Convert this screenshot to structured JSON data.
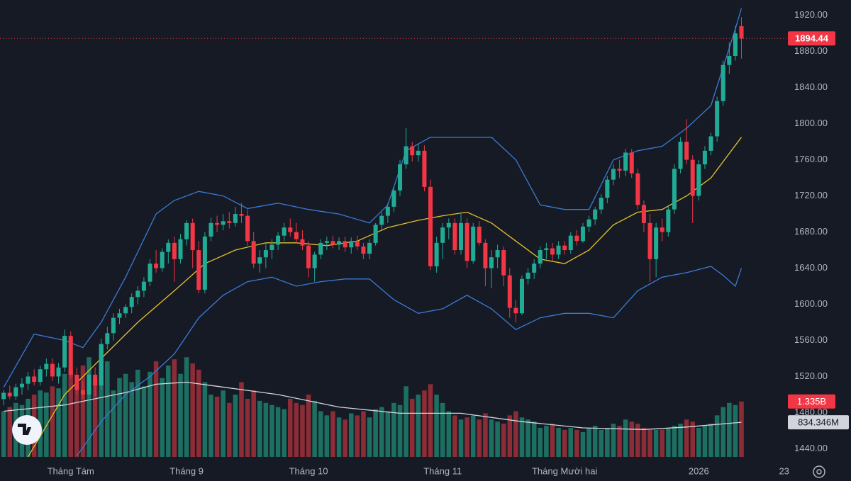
{
  "chart_data": {
    "type": "candlestick",
    "up_color": "#22ab94",
    "down_color": "#f23645",
    "ylim": [
      1427,
      1937
    ],
    "yticks": [
      {
        "value": 1440,
        "label": "1440.00"
      },
      {
        "value": 1480,
        "label": "1480.00"
      },
      {
        "value": 1520,
        "label": "1520.00"
      },
      {
        "value": 1560,
        "label": "1560.00"
      },
      {
        "value": 1600,
        "label": "1600.00"
      },
      {
        "value": 1640,
        "label": "1640.00"
      },
      {
        "value": 1680,
        "label": "1680.00"
      },
      {
        "value": 1720,
        "label": "1720.00"
      },
      {
        "value": 1760,
        "label": "1760.00"
      },
      {
        "value": 1800,
        "label": "1800.00"
      },
      {
        "value": 1840,
        "label": "1840.00"
      },
      {
        "value": 1880,
        "label": "1880.00"
      },
      {
        "value": 1920,
        "label": "1920.00"
      }
    ],
    "xlim": [
      -0.6,
      128.5
    ],
    "xticks": [
      {
        "value": 11,
        "label": "Tháng Tám"
      },
      {
        "value": 30,
        "label": "Tháng 9"
      },
      {
        "value": 50,
        "label": "Tháng 10"
      },
      {
        "value": 72,
        "label": "Tháng 11"
      },
      {
        "value": 92,
        "label": "Tháng Mười hai"
      },
      {
        "value": 114,
        "label": "2026"
      },
      {
        "value": 128,
        "label": "23"
      }
    ],
    "grid": false,
    "candles": [
      [
        1495,
        1505,
        1488,
        1502
      ],
      [
        1502,
        1510,
        1495,
        1498
      ],
      [
        1498,
        1512,
        1494,
        1508
      ],
      [
        1508,
        1518,
        1500,
        1512
      ],
      [
        1512,
        1525,
        1505,
        1520
      ],
      [
        1520,
        1528,
        1510,
        1514
      ],
      [
        1514,
        1532,
        1510,
        1528
      ],
      [
        1528,
        1540,
        1520,
        1534
      ],
      [
        1534,
        1540,
        1515,
        1520
      ],
      [
        1520,
        1535,
        1512,
        1530
      ],
      [
        1530,
        1572,
        1525,
        1565
      ],
      [
        1565,
        1570,
        1518,
        1522
      ],
      [
        1522,
        1530,
        1500,
        1505
      ],
      [
        1505,
        1515,
        1495,
        1500
      ],
      [
        1500,
        1525,
        1496,
        1522
      ],
      [
        1522,
        1530,
        1498,
        1510
      ],
      [
        1510,
        1562,
        1505,
        1556
      ],
      [
        1556,
        1575,
        1550,
        1568
      ],
      [
        1568,
        1590,
        1560,
        1585
      ],
      [
        1585,
        1595,
        1578,
        1590
      ],
      [
        1590,
        1600,
        1585,
        1597
      ],
      [
        1597,
        1612,
        1590,
        1608
      ],
      [
        1608,
        1620,
        1600,
        1615
      ],
      [
        1615,
        1630,
        1608,
        1625
      ],
      [
        1625,
        1650,
        1620,
        1645
      ],
      [
        1645,
        1660,
        1635,
        1640
      ],
      [
        1640,
        1662,
        1636,
        1658
      ],
      [
        1658,
        1672,
        1645,
        1668
      ],
      [
        1668,
        1675,
        1625,
        1650
      ],
      [
        1650,
        1678,
        1645,
        1672
      ],
      [
        1672,
        1693,
        1665,
        1690
      ],
      [
        1690,
        1695,
        1640,
        1660
      ],
      [
        1660,
        1670,
        1612,
        1616
      ],
      [
        1616,
        1680,
        1612,
        1675
      ],
      [
        1675,
        1696,
        1670,
        1690
      ],
      [
        1690,
        1698,
        1680,
        1688
      ],
      [
        1688,
        1700,
        1682,
        1692
      ],
      [
        1692,
        1702,
        1684,
        1690
      ],
      [
        1690,
        1708,
        1686,
        1700
      ],
      [
        1700,
        1712,
        1690,
        1698
      ],
      [
        1698,
        1705,
        1665,
        1670
      ],
      [
        1670,
        1680,
        1640,
        1645
      ],
      [
        1645,
        1660,
        1635,
        1652
      ],
      [
        1652,
        1668,
        1640,
        1660
      ],
      [
        1660,
        1672,
        1650,
        1666
      ],
      [
        1666,
        1680,
        1660,
        1676
      ],
      [
        1676,
        1690,
        1670,
        1685
      ],
      [
        1685,
        1695,
        1675,
        1680
      ],
      [
        1680,
        1690,
        1668,
        1672
      ],
      [
        1672,
        1682,
        1660,
        1665
      ],
      [
        1665,
        1670,
        1630,
        1640
      ],
      [
        1640,
        1658,
        1625,
        1655
      ],
      [
        1655,
        1672,
        1650,
        1668
      ],
      [
        1668,
        1675,
        1660,
        1670
      ],
      [
        1670,
        1676,
        1662,
        1666
      ],
      [
        1666,
        1674,
        1660,
        1670
      ],
      [
        1670,
        1675,
        1658,
        1663
      ],
      [
        1663,
        1674,
        1656,
        1670
      ],
      [
        1670,
        1676,
        1660,
        1664
      ],
      [
        1664,
        1668,
        1650,
        1656
      ],
      [
        1656,
        1672,
        1650,
        1668
      ],
      [
        1668,
        1690,
        1665,
        1688
      ],
      [
        1688,
        1702,
        1682,
        1698
      ],
      [
        1698,
        1712,
        1690,
        1708
      ],
      [
        1708,
        1730,
        1702,
        1726
      ],
      [
        1726,
        1760,
        1720,
        1755
      ],
      [
        1755,
        1795,
        1750,
        1775
      ],
      [
        1775,
        1780,
        1758,
        1765
      ],
      [
        1765,
        1778,
        1758,
        1770
      ],
      [
        1770,
        1776,
        1725,
        1730
      ],
      [
        1730,
        1738,
        1638,
        1642
      ],
      [
        1642,
        1675,
        1635,
        1668
      ],
      [
        1668,
        1690,
        1650,
        1685
      ],
      [
        1685,
        1695,
        1672,
        1690
      ],
      [
        1690,
        1695,
        1655,
        1660
      ],
      [
        1660,
        1700,
        1655,
        1690
      ],
      [
        1690,
        1695,
        1640,
        1648
      ],
      [
        1648,
        1690,
        1645,
        1686
      ],
      [
        1686,
        1692,
        1665,
        1668
      ],
      [
        1668,
        1672,
        1620,
        1640
      ],
      [
        1640,
        1660,
        1618,
        1652
      ],
      [
        1652,
        1666,
        1640,
        1660
      ],
      [
        1660,
        1664,
        1620,
        1632
      ],
      [
        1632,
        1640,
        1585,
        1596
      ],
      [
        1596,
        1605,
        1580,
        1590
      ],
      [
        1590,
        1632,
        1588,
        1628
      ],
      [
        1628,
        1640,
        1622,
        1635
      ],
      [
        1635,
        1650,
        1628,
        1645
      ],
      [
        1645,
        1664,
        1640,
        1660
      ],
      [
        1660,
        1668,
        1650,
        1662
      ],
      [
        1662,
        1668,
        1648,
        1655
      ],
      [
        1655,
        1670,
        1650,
        1665
      ],
      [
        1665,
        1670,
        1655,
        1660
      ],
      [
        1660,
        1680,
        1656,
        1676
      ],
      [
        1676,
        1682,
        1665,
        1670
      ],
      [
        1670,
        1690,
        1668,
        1686
      ],
      [
        1686,
        1698,
        1680,
        1694
      ],
      [
        1694,
        1708,
        1688,
        1705
      ],
      [
        1705,
        1722,
        1700,
        1718
      ],
      [
        1718,
        1742,
        1712,
        1738
      ],
      [
        1738,
        1755,
        1732,
        1750
      ],
      [
        1750,
        1760,
        1740,
        1748
      ],
      [
        1748,
        1772,
        1742,
        1768
      ],
      [
        1768,
        1772,
        1740,
        1745
      ],
      [
        1745,
        1750,
        1705,
        1710
      ],
      [
        1710,
        1715,
        1680,
        1690
      ],
      [
        1690,
        1700,
        1625,
        1650
      ],
      [
        1650,
        1690,
        1630,
        1685
      ],
      [
        1685,
        1695,
        1670,
        1680
      ],
      [
        1680,
        1710,
        1675,
        1705
      ],
      [
        1705,
        1755,
        1700,
        1750
      ],
      [
        1750,
        1785,
        1745,
        1780
      ],
      [
        1780,
        1805,
        1755,
        1760
      ],
      [
        1760,
        1765,
        1690,
        1720
      ],
      [
        1720,
        1760,
        1715,
        1755
      ],
      [
        1755,
        1775,
        1750,
        1770
      ],
      [
        1770,
        1790,
        1765,
        1786
      ],
      [
        1786,
        1830,
        1780,
        1825
      ],
      [
        1825,
        1870,
        1820,
        1865
      ],
      [
        1865,
        1890,
        1855,
        1875
      ],
      [
        1875,
        1908,
        1870,
        1900
      ],
      [
        1908,
        1918,
        1872,
        1894.44
      ]
    ],
    "last_price_color": "#f23645",
    "upper_band": {
      "color": "#3a7bd5",
      "x": [
        0,
        5,
        10,
        13,
        16,
        20,
        25,
        28,
        32,
        36,
        40,
        45,
        50,
        55,
        60,
        63,
        66,
        70,
        75,
        80,
        84,
        88,
        92,
        96,
        100,
        104,
        108,
        112,
        116,
        120,
        121
      ],
      "values": [
        1508,
        1567,
        1560,
        1552,
        1580,
        1630,
        1700,
        1715,
        1725,
        1720,
        1706,
        1712,
        1705,
        1700,
        1690,
        1710,
        1770,
        1785,
        1785,
        1785,
        1760,
        1710,
        1705,
        1705,
        1760,
        1770,
        1775,
        1795,
        1820,
        1905,
        1928
      ]
    },
    "middle_band": {
      "color": "#e5c12b",
      "x": [
        4,
        10,
        16,
        22,
        28,
        33,
        38,
        43,
        48,
        53,
        58,
        63,
        68,
        72,
        76,
        80,
        84,
        88,
        92,
        96,
        100,
        104,
        108,
        112,
        116,
        121
      ],
      "values": [
        1431,
        1500,
        1540,
        1580,
        1615,
        1645,
        1660,
        1668,
        1668,
        1665,
        1670,
        1685,
        1693,
        1698,
        1702,
        1690,
        1670,
        1650,
        1645,
        1660,
        1688,
        1702,
        1705,
        1720,
        1740,
        1785
      ]
    },
    "lower_band": {
      "color": "#3a7bd5",
      "x": [
        12,
        16,
        20,
        24,
        28,
        32,
        36,
        40,
        44,
        48,
        52,
        56,
        60,
        64,
        68,
        72,
        76,
        80,
        84,
        88,
        92,
        96,
        100,
        104,
        108,
        112,
        116,
        118,
        120,
        121
      ],
      "values": [
        1432,
        1470,
        1500,
        1520,
        1545,
        1585,
        1610,
        1625,
        1630,
        1620,
        1625,
        1628,
        1628,
        1605,
        1590,
        1595,
        1610,
        1595,
        1572,
        1585,
        1590,
        1590,
        1585,
        1615,
        1630,
        1635,
        1642,
        1632,
        1620,
        1640
      ]
    },
    "volume": {
      "up_color": "#1d6f62",
      "down_color": "#8b2c36",
      "vlim": [
        0,
        11000
      ],
      "values": [
        1100,
        1200,
        1300,
        1250,
        1400,
        1500,
        1600,
        1550,
        1700,
        1650,
        2000,
        2100,
        1700,
        2200,
        2400,
        1900,
        2700,
        2300,
        1600,
        1900,
        2000,
        1800,
        2100,
        1700,
        2050,
        2300,
        1900,
        2200,
        2350,
        2000,
        2400,
        2250,
        2100,
        1800,
        1500,
        1450,
        1600,
        1300,
        1500,
        1800,
        1400,
        1600,
        1350,
        1300,
        1250,
        1200,
        1150,
        1400,
        1300,
        1250,
        1500,
        1350,
        1100,
        1000,
        1100,
        950,
        900,
        1050,
        1000,
        1100,
        950,
        1150,
        1200,
        1100,
        1300,
        1250,
        1700,
        1400,
        1500,
        1600,
        1750,
        1500,
        1300,
        1100,
        1000,
        900,
        950,
        1000,
        900,
        1050,
        900,
        850,
        800,
        1000,
        1100,
        950,
        900,
        850,
        700,
        750,
        800,
        700,
        650,
        700,
        650,
        600,
        700,
        750,
        650,
        700,
        800,
        750,
        900,
        850,
        800,
        700,
        650,
        650,
        650,
        700,
        750,
        800,
        900,
        850,
        700,
        750,
        800,
        1000,
        1200,
        1300,
        1250,
        1335
      ],
      "value_labels": [
        null,
        null,
        null,
        null,
        null,
        null,
        null,
        null,
        null,
        null,
        null,
        null,
        null,
        null,
        null,
        null,
        null,
        null,
        null,
        null,
        null,
        null,
        null,
        null,
        null,
        null,
        null,
        null,
        null,
        null,
        null,
        null,
        null,
        null,
        null,
        null,
        null,
        null,
        null,
        null,
        null,
        null,
        null,
        null,
        null,
        null,
        null,
        null,
        null,
        null,
        null,
        null,
        null,
        null,
        null,
        null,
        null,
        null,
        null,
        null,
        null,
        null,
        null,
        null,
        null,
        null,
        null,
        null,
        null,
        null,
        null,
        null,
        null,
        null,
        null,
        null,
        null,
        null,
        null,
        null,
        null,
        null,
        null,
        null,
        null,
        null,
        null,
        null,
        null,
        null,
        null,
        null,
        null,
        null,
        null,
        null,
        null,
        null,
        null,
        null,
        null,
        null,
        null,
        null,
        null,
        null,
        null,
        null,
        null,
        null,
        null,
        null,
        null,
        null,
        null,
        null,
        null,
        null,
        null,
        null,
        null,
        "1.335B"
      ],
      "ma": {
        "color": "#d1d4dc",
        "x": [
          0,
          10,
          20,
          25,
          30,
          35,
          45,
          55,
          65,
          75,
          85,
          95,
          105,
          112,
          121
        ],
        "values": [
          1100,
          1250,
          1550,
          1750,
          1800,
          1700,
          1500,
          1200,
          1050,
          1050,
          850,
          700,
          660,
          720,
          834.346
        ],
        "value_labels": [
          null,
          null,
          null,
          null,
          null,
          null,
          null,
          null,
          null,
          null,
          null,
          null,
          null,
          null,
          "834.346M"
        ]
      }
    }
  }
}
